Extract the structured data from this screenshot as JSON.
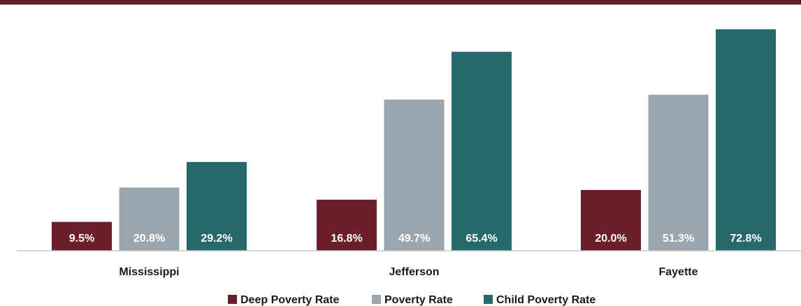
{
  "colors": {
    "header_band": "#6b1f2a",
    "header_border": "#3a0f16",
    "axis": "#c8c8c8"
  },
  "chart_data": {
    "type": "bar",
    "categories": [
      "Mississippi",
      "Jefferson",
      "Fayette"
    ],
    "series": [
      {
        "name": "Deep Poverty Rate",
        "color": "#6b1f2a",
        "values": [
          9.5,
          16.8,
          20.0
        ],
        "labels": [
          "9.5%",
          "16.8%",
          "20.0%"
        ]
      },
      {
        "name": "Poverty Rate",
        "color": "#9ba5ae",
        "values": [
          20.8,
          49.7,
          51.3
        ],
        "labels": [
          "20.8%",
          "49.7%",
          "51.3%"
        ]
      },
      {
        "name": "Child Poverty Rate",
        "color": "#27686c",
        "values": [
          29.2,
          65.4,
          72.8
        ],
        "labels": [
          "29.2%",
          "65.4%",
          "72.8%"
        ]
      }
    ],
    "title": "",
    "xlabel": "",
    "ylabel": "",
    "ylim": [
      0,
      76
    ],
    "grid": false,
    "legend": "bottom-center"
  }
}
